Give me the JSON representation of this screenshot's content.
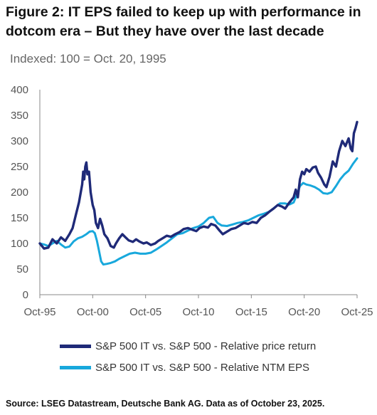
{
  "header": {
    "title": "Figure 2: IT EPS failed to keep up with performance in dotcom era – But they have over the last decade",
    "subtitle": "Indexed: 100 = Oct. 20, 1995"
  },
  "source": "Source: LSEG Datastream, Deutsche Bank AG. Data as of October 23, 2025.",
  "colors": {
    "price": "#1f2a78",
    "eps": "#18a8dc",
    "axis": "#888888"
  },
  "chart_data": {
    "type": "line",
    "title": "",
    "xlabel": "",
    "ylabel": "",
    "xlim": [
      1995.8,
      2025.8
    ],
    "ylim": [
      0,
      400
    ],
    "yticks": [
      0,
      50,
      100,
      150,
      200,
      250,
      300,
      350,
      400
    ],
    "xticks": [
      {
        "value": 1995.8,
        "label": "Oct-95"
      },
      {
        "value": 2000.8,
        "label": "Oct-00"
      },
      {
        "value": 2005.8,
        "label": "Oct-05"
      },
      {
        "value": 2010.8,
        "label": "Oct-10"
      },
      {
        "value": 2015.8,
        "label": "Oct-15"
      },
      {
        "value": 2020.8,
        "label": "Oct-20"
      },
      {
        "value": 2025.8,
        "label": "Oct-25"
      }
    ],
    "grid": false,
    "legend": "bottom",
    "series": [
      {
        "name": "S&P 500 IT vs. S&P 500 - Relative price return",
        "color": "#1f2a78",
        "points": [
          [
            1995.8,
            100
          ],
          [
            1996.2,
            90
          ],
          [
            1996.6,
            92
          ],
          [
            1997.0,
            108
          ],
          [
            1997.4,
            100
          ],
          [
            1997.8,
            112
          ],
          [
            1998.2,
            105
          ],
          [
            1998.6,
            118
          ],
          [
            1998.9,
            130
          ],
          [
            1999.2,
            155
          ],
          [
            1999.5,
            180
          ],
          [
            1999.8,
            215
          ],
          [
            1999.9,
            240
          ],
          [
            2000.0,
            225
          ],
          [
            2000.1,
            250
          ],
          [
            2000.2,
            258
          ],
          [
            2000.3,
            235
          ],
          [
            2000.45,
            240
          ],
          [
            2000.6,
            200
          ],
          [
            2000.8,
            175
          ],
          [
            2000.95,
            165
          ],
          [
            2001.1,
            140
          ],
          [
            2001.3,
            130
          ],
          [
            2001.5,
            148
          ],
          [
            2001.7,
            135
          ],
          [
            2001.9,
            118
          ],
          [
            2002.2,
            110
          ],
          [
            2002.5,
            95
          ],
          [
            2002.8,
            92
          ],
          [
            2003.0,
            100
          ],
          [
            2003.3,
            110
          ],
          [
            2003.6,
            118
          ],
          [
            2003.9,
            112
          ],
          [
            2004.2,
            106
          ],
          [
            2004.6,
            103
          ],
          [
            2004.9,
            108
          ],
          [
            2005.2,
            104
          ],
          [
            2005.6,
            100
          ],
          [
            2005.9,
            102
          ],
          [
            2006.3,
            97
          ],
          [
            2006.7,
            100
          ],
          [
            2007.0,
            105
          ],
          [
            2007.4,
            110
          ],
          [
            2007.8,
            115
          ],
          [
            2008.2,
            113
          ],
          [
            2008.6,
            118
          ],
          [
            2009.0,
            122
          ],
          [
            2009.4,
            128
          ],
          [
            2009.8,
            130
          ],
          [
            2010.2,
            127
          ],
          [
            2010.6,
            124
          ],
          [
            2010.9,
            130
          ],
          [
            2011.3,
            133
          ],
          [
            2011.7,
            131
          ],
          [
            2012.0,
            138
          ],
          [
            2012.4,
            135
          ],
          [
            2012.8,
            125
          ],
          [
            2013.1,
            118
          ],
          [
            2013.5,
            123
          ],
          [
            2013.9,
            128
          ],
          [
            2014.3,
            130
          ],
          [
            2014.7,
            135
          ],
          [
            2015.1,
            140
          ],
          [
            2015.5,
            138
          ],
          [
            2015.9,
            142
          ],
          [
            2016.3,
            140
          ],
          [
            2016.7,
            150
          ],
          [
            2017.1,
            155
          ],
          [
            2017.5,
            162
          ],
          [
            2017.9,
            168
          ],
          [
            2018.3,
            175
          ],
          [
            2018.7,
            172
          ],
          [
            2019.0,
            168
          ],
          [
            2019.4,
            180
          ],
          [
            2019.8,
            190
          ],
          [
            2020.0,
            205
          ],
          [
            2020.2,
            190
          ],
          [
            2020.4,
            225
          ],
          [
            2020.6,
            240
          ],
          [
            2020.8,
            235
          ],
          [
            2021.0,
            245
          ],
          [
            2021.3,
            240
          ],
          [
            2021.6,
            248
          ],
          [
            2021.9,
            250
          ],
          [
            2022.1,
            238
          ],
          [
            2022.4,
            228
          ],
          [
            2022.7,
            215
          ],
          [
            2022.9,
            210
          ],
          [
            2023.2,
            230
          ],
          [
            2023.5,
            260
          ],
          [
            2023.8,
            250
          ],
          [
            2024.1,
            280
          ],
          [
            2024.4,
            300
          ],
          [
            2024.7,
            290
          ],
          [
            2025.0,
            305
          ],
          [
            2025.2,
            285
          ],
          [
            2025.35,
            280
          ],
          [
            2025.5,
            315
          ],
          [
            2025.65,
            325
          ],
          [
            2025.8,
            337
          ]
        ]
      },
      {
        "name": "S&P 500 IT vs. S&P 500 - Relative NTM EPS",
        "color": "#18a8dc",
        "points": [
          [
            1995.8,
            100
          ],
          [
            1996.2,
            98
          ],
          [
            1996.6,
            95
          ],
          [
            1997.0,
            100
          ],
          [
            1997.4,
            105
          ],
          [
            1997.8,
            98
          ],
          [
            1998.2,
            92
          ],
          [
            1998.6,
            94
          ],
          [
            1999.0,
            104
          ],
          [
            1999.4,
            110
          ],
          [
            1999.8,
            113
          ],
          [
            2000.2,
            118
          ],
          [
            2000.5,
            123
          ],
          [
            2000.8,
            124
          ],
          [
            2001.0,
            120
          ],
          [
            2001.2,
            105
          ],
          [
            2001.4,
            85
          ],
          [
            2001.6,
            65
          ],
          [
            2001.8,
            59
          ],
          [
            2002.1,
            60
          ],
          [
            2002.5,
            62
          ],
          [
            2002.9,
            65
          ],
          [
            2003.3,
            70
          ],
          [
            2003.8,
            75
          ],
          [
            2004.3,
            80
          ],
          [
            2004.8,
            82
          ],
          [
            2005.3,
            80
          ],
          [
            2005.8,
            80
          ],
          [
            2006.3,
            82
          ],
          [
            2006.8,
            88
          ],
          [
            2007.3,
            95
          ],
          [
            2007.8,
            102
          ],
          [
            2008.3,
            110
          ],
          [
            2008.8,
            118
          ],
          [
            2009.3,
            120
          ],
          [
            2009.8,
            125
          ],
          [
            2010.3,
            130
          ],
          [
            2010.8,
            133
          ],
          [
            2011.3,
            140
          ],
          [
            2011.8,
            150
          ],
          [
            2012.2,
            152
          ],
          [
            2012.6,
            140
          ],
          [
            2013.0,
            135
          ],
          [
            2013.5,
            134
          ],
          [
            2014.0,
            137
          ],
          [
            2014.5,
            140
          ],
          [
            2015.0,
            142
          ],
          [
            2015.5,
            145
          ],
          [
            2016.0,
            150
          ],
          [
            2016.5,
            155
          ],
          [
            2017.0,
            158
          ],
          [
            2017.5,
            162
          ],
          [
            2018.0,
            170
          ],
          [
            2018.5,
            178
          ],
          [
            2019.0,
            178
          ],
          [
            2019.4,
            176
          ],
          [
            2019.8,
            180
          ],
          [
            2020.1,
            195
          ],
          [
            2020.4,
            212
          ],
          [
            2020.7,
            218
          ],
          [
            2021.0,
            215
          ],
          [
            2021.4,
            213
          ],
          [
            2021.8,
            210
          ],
          [
            2022.2,
            205
          ],
          [
            2022.6,
            198
          ],
          [
            2023.0,
            197
          ],
          [
            2023.4,
            200
          ],
          [
            2023.8,
            212
          ],
          [
            2024.2,
            225
          ],
          [
            2024.6,
            235
          ],
          [
            2025.0,
            242
          ],
          [
            2025.4,
            255
          ],
          [
            2025.8,
            266
          ]
        ]
      }
    ]
  }
}
